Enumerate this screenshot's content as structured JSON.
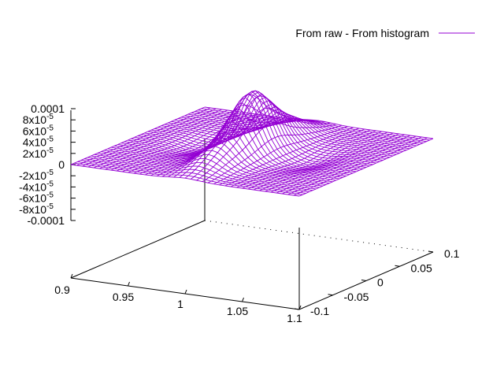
{
  "chart_data": {
    "type": "surface",
    "title": "",
    "legend": {
      "label": "From raw - From histogram",
      "placement": "top-right"
    },
    "series": [
      {
        "name": "From raw - From histogram",
        "color": "#9400d3"
      }
    ],
    "x_ticks": [
      "0.9",
      "0.95",
      "1",
      "1.05",
      "1.1"
    ],
    "y_ticks": [
      "-0.1",
      "-0.05",
      "0",
      "0.05",
      "0.1"
    ],
    "z_ticks": [
      "0.0001",
      "8x10",
      "6x10",
      "4x10",
      "2x10",
      "0",
      "-2x10",
      "-4x10",
      "-6x10",
      "-8x10",
      "-0.0001"
    ],
    "z_tick_exponents": [
      "",
      "-5",
      "-5",
      "-5",
      "-5",
      "",
      "-5",
      "-5",
      "-5",
      "-5",
      ""
    ],
    "xlim": [
      0.9,
      1.1
    ],
    "ylim": [
      -0.1,
      0.1
    ],
    "zlim": [
      -0.0001,
      0.0001
    ],
    "surface_features": [
      {
        "kind": "peak",
        "x": 1.0,
        "y": 0.0,
        "z": 0.0001
      },
      {
        "kind": "ridge",
        "x": 1.0,
        "y": -0.05,
        "z": 3e-05
      },
      {
        "kind": "ridge",
        "x": 1.0,
        "y": 0.05,
        "z": 3e-05
      },
      {
        "kind": "trough",
        "x": 0.95,
        "y": 0.0,
        "z": -1e-05
      },
      {
        "kind": "trough",
        "x": 1.05,
        "y": 0.0,
        "z": -1e-05
      }
    ],
    "grid": false
  }
}
